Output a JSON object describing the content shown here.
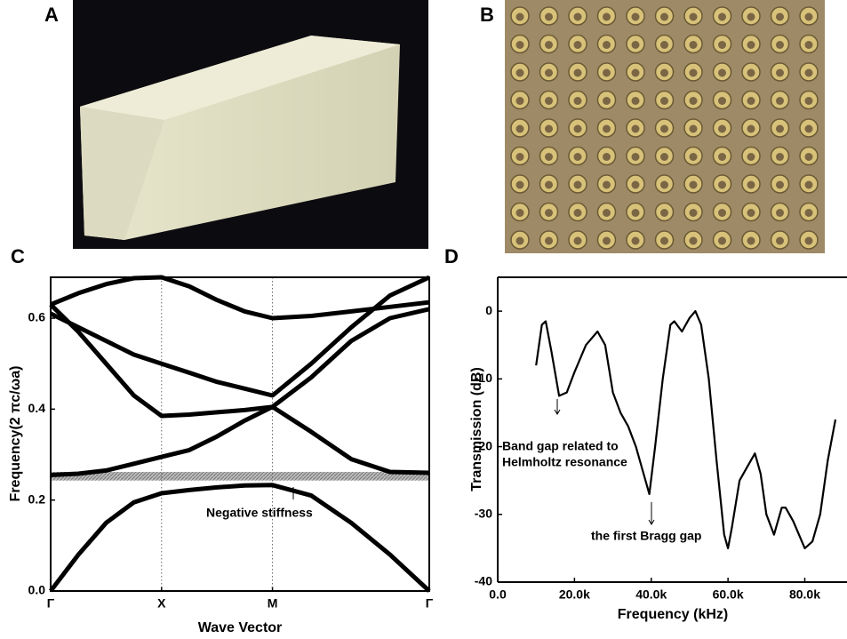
{
  "panels": {
    "a": {
      "label": "A"
    },
    "b": {
      "label": "B"
    }
  },
  "chart_data": [
    {
      "type": "line",
      "panel_label": "C",
      "xlabel": "Wave Vector",
      "ylabel": "Frequency(2 πc/ωa)",
      "annotation": "Negative stiffness",
      "color": "#000000",
      "x": [
        0,
        0.25,
        0.5,
        0.75,
        1,
        1.25,
        1.5,
        1.75,
        2,
        2.35,
        2.71,
        3.06,
        3.414
      ],
      "series": [
        {
          "values": [
            0,
            0.08,
            0.15,
            0.195,
            0.215,
            0.222,
            0.228,
            0.232,
            0.233,
            0.21,
            0.15,
            0.08,
            0
          ]
        },
        {
          "values": [
            0.255,
            0.258,
            0.265,
            0.28,
            0.295,
            0.31,
            0.34,
            0.375,
            0.405,
            0.35,
            0.29,
            0.262,
            0.26
          ]
        },
        {
          "values": [
            0.63,
            0.57,
            0.5,
            0.43,
            0.385,
            0.388,
            0.393,
            0.398,
            0.405,
            0.47,
            0.55,
            0.6,
            0.62
          ]
        },
        {
          "values": [
            0.61,
            0.58,
            0.55,
            0.52,
            0.5,
            0.48,
            0.46,
            0.445,
            0.43,
            0.5,
            0.58,
            0.65,
            0.69
          ]
        },
        {
          "values": [
            0.63,
            0.655,
            0.675,
            0.688,
            0.69,
            0.67,
            0.64,
            0.615,
            0.6,
            0.605,
            0.615,
            0.625,
            0.635
          ]
        }
      ],
      "shaded_band": [
        0.243,
        0.262
      ],
      "xlim": [
        0,
        3.414
      ],
      "xticks": [
        {
          "value": 0,
          "label": "Γ"
        },
        {
          "value": 1,
          "label": "X"
        },
        {
          "value": 2,
          "label": "M"
        },
        {
          "value": 3.414,
          "label": "Γ"
        }
      ],
      "ylim": [
        0,
        0.69
      ],
      "yticks": [
        {
          "value": 0,
          "label": "0.0"
        },
        0.2,
        0.4,
        0.6
      ]
    },
    {
      "type": "line",
      "panel_label": "D",
      "xlabel": "Frequency (kHz)",
      "ylabel": "Transmission (dB)",
      "color": "#000000",
      "annotations": [
        [
          "Band gap related to",
          "Helmholtz resonance"
        ],
        [
          "the first Bragg gap"
        ]
      ],
      "x": [
        10000,
        11500,
        12500,
        14000,
        16000,
        18000,
        20000,
        23000,
        26000,
        28000,
        30000,
        32000,
        34000,
        36000,
        38000,
        39500,
        41000,
        43000,
        45000,
        46000,
        48000,
        50000,
        51500,
        53000,
        55000,
        57000,
        59000,
        60000,
        61000,
        63000,
        65000,
        67000,
        68500,
        70000,
        72000,
        74000,
        75000,
        77000,
        80000,
        82000,
        84000,
        86000,
        88000
      ],
      "series": [
        {
          "values": [
            -8,
            -2,
            -1.5,
            -6,
            -12.5,
            -12,
            -9,
            -5,
            -3,
            -5,
            -12,
            -15,
            -17,
            -20,
            -24,
            -27,
            -20,
            -10,
            -2,
            -1.5,
            -3,
            -1,
            0,
            -2,
            -10,
            -22,
            -33,
            -35,
            -32,
            -25,
            -23,
            -21,
            -24,
            -30,
            -33,
            -29,
            -29,
            -31,
            -35,
            -34,
            -30,
            -22,
            -16
          ]
        }
      ],
      "xlim": [
        0,
        91000
      ],
      "xticks": [
        {
          "value": 0,
          "label": "0.0"
        },
        {
          "value": 20000,
          "label": "20.0k"
        },
        {
          "value": 40000,
          "label": "40.0k"
        },
        {
          "value": 60000,
          "label": "60.0k"
        },
        {
          "value": 80000,
          "label": "80.0k"
        }
      ],
      "ylim": [
        -40,
        5
      ],
      "yticks": [
        0,
        -10,
        -20,
        -30,
        -40
      ]
    }
  ]
}
